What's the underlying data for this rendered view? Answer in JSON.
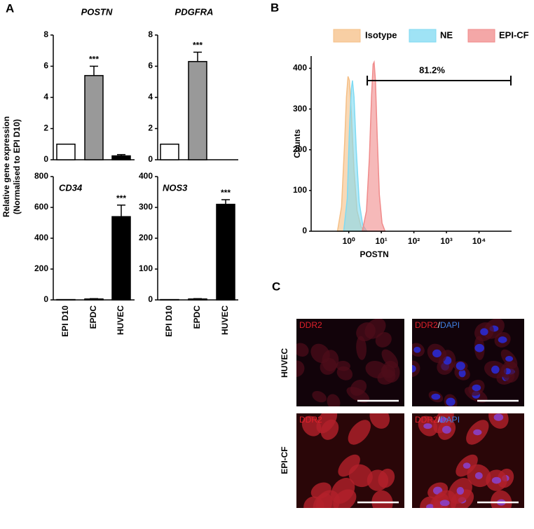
{
  "panel_labels": [
    "A",
    "B",
    "C"
  ],
  "y_label_shared": [
    "Relative gene expression",
    "(Normalised to EPI D10)"
  ],
  "chart_data": [
    {
      "type": "bar",
      "title": "POSTN",
      "values": [
        1,
        5.4,
        0.25
      ],
      "errors": [
        0,
        0.6,
        0.08
      ],
      "colors": [
        "#ffffff",
        "#999999",
        "#000000"
      ],
      "ylim": [
        0,
        8
      ],
      "yticks": [
        0,
        2,
        4,
        6,
        8
      ],
      "annotation": "***"
    },
    {
      "type": "bar",
      "title": "PDGFRA",
      "values": [
        1,
        6.3,
        0
      ],
      "errors": [
        0,
        0.6,
        0
      ],
      "colors": [
        "#ffffff",
        "#999999",
        "#000000"
      ],
      "ylim": [
        0,
        8
      ],
      "yticks": [
        0,
        2,
        4,
        6,
        8
      ],
      "annotation": "***"
    },
    {
      "type": "bar",
      "title": "CD34",
      "categories": [
        "EPI D10",
        "EPDC",
        "HUVEC"
      ],
      "values": [
        2,
        6,
        540
      ],
      "errors": [
        0,
        2,
        75
      ],
      "colors": [
        "#ffffff",
        "#999999",
        "#000000"
      ],
      "ylim": [
        0,
        800
      ],
      "yticks": [
        0,
        200,
        400,
        600,
        800
      ],
      "annotation": "***"
    },
    {
      "type": "bar",
      "title": "NOS3",
      "categories": [
        "EPI D10",
        "EPDC",
        "HUVEC"
      ],
      "values": [
        1,
        3,
        310
      ],
      "errors": [
        0,
        1,
        15
      ],
      "colors": [
        "#ffffff",
        "#999999",
        "#000000"
      ],
      "ylim": [
        0,
        400
      ],
      "yticks": [
        0,
        100,
        200,
        300,
        400
      ],
      "annotation": "***"
    },
    {
      "type": "area",
      "x_label": "POSTN",
      "y_label": "Counts",
      "log_x": true,
      "xlim": [
        0.07,
        100000
      ],
      "ylim": [
        0,
        430
      ],
      "xticks": [
        {
          "value": 1,
          "label": "10⁰"
        },
        {
          "value": 10,
          "label": "10¹"
        },
        {
          "value": 100,
          "label": "10²"
        },
        {
          "value": 1000,
          "label": "10³"
        },
        {
          "value": 10000,
          "label": "10⁴"
        }
      ],
      "yticks": [
        0,
        100,
        200,
        300,
        400
      ],
      "series": [
        {
          "name": "Isotype",
          "color": "#f5bf86",
          "x": [
            0.45,
            0.6,
            0.75,
            0.85,
            0.95,
            1.05,
            1.2,
            1.45,
            1.8,
            2.4,
            3.2
          ],
          "values": [
            0,
            60,
            220,
            330,
            380,
            370,
            290,
            150,
            50,
            10,
            0
          ]
        },
        {
          "name": "NE",
          "color": "#7fdaf2",
          "x": [
            0.7,
            0.9,
            1.05,
            1.2,
            1.3,
            1.45,
            1.7,
            2.1,
            2.7,
            3.6
          ],
          "values": [
            0,
            80,
            250,
            350,
            370,
            330,
            200,
            70,
            15,
            0
          ]
        },
        {
          "name": "EPI-CF",
          "color": "#f08a8a",
          "x": [
            2.6,
            3.5,
            4.3,
            5.0,
            5.6,
            6.0,
            6.6,
            7.5,
            8.7,
            10.5,
            13
          ],
          "values": [
            0,
            50,
            180,
            330,
            410,
            415,
            370,
            230,
            90,
            20,
            0
          ]
        }
      ],
      "gate": {
        "range": [
          3.7,
          95000
        ],
        "label": "81.2%"
      }
    }
  ],
  "panel_c": {
    "images": [
      {
        "labels": [
          "DDR2"
        ]
      },
      {
        "labels": [
          "DDR2",
          "/",
          "DAPI"
        ]
      },
      {
        "labels": [
          "DDR2"
        ]
      },
      {
        "labels": [
          "DDR2",
          "/",
          "DAPI"
        ]
      }
    ],
    "row_labels": [
      "HUVEC",
      "EPI-CF"
    ]
  }
}
